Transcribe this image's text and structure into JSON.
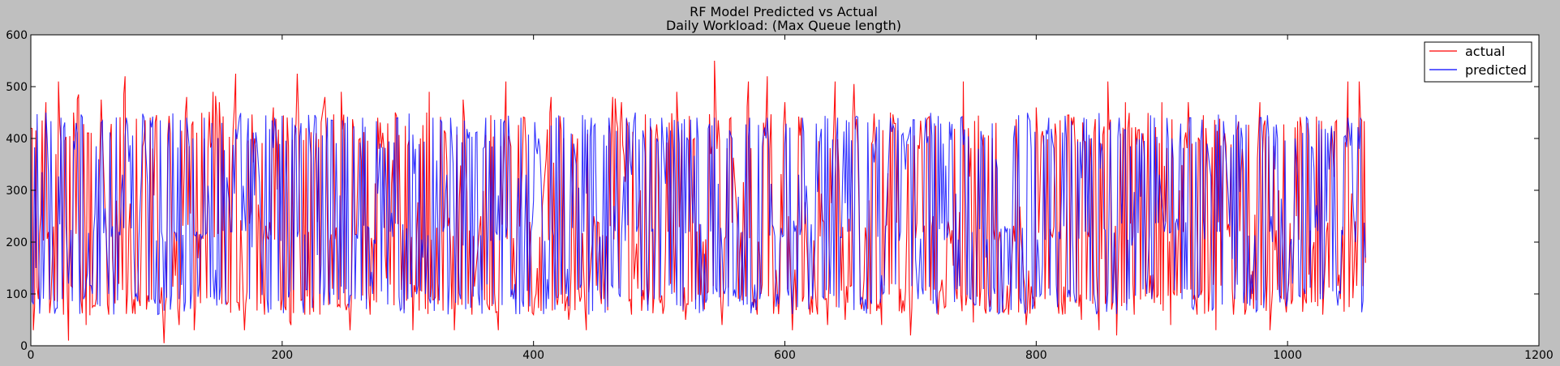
{
  "chart_data": {
    "type": "line",
    "title": "RF Model Predicted vs Actual",
    "subtitle": "Daily Workload: (Max Queue length)",
    "xlabel": "",
    "ylabel": "",
    "xlim": [
      0,
      1200
    ],
    "ylim": [
      0,
      600
    ],
    "x_ticks": [
      0,
      200,
      400,
      600,
      800,
      1000,
      1200
    ],
    "y_ticks": [
      0,
      100,
      200,
      300,
      400,
      500,
      600
    ],
    "grid": false,
    "legend_position": "top-right",
    "n_points": 1063,
    "series": [
      {
        "name": "actual",
        "color": "#ff0000",
        "keypoints": [
          [
            0,
            420
          ],
          [
            2,
            30
          ],
          [
            6,
            90
          ],
          [
            8,
            255
          ],
          [
            12,
            470
          ],
          [
            16,
            90
          ],
          [
            22,
            510
          ],
          [
            26,
            60
          ],
          [
            30,
            10
          ],
          [
            34,
            450
          ],
          [
            38,
            485
          ],
          [
            44,
            40
          ],
          [
            52,
            90
          ],
          [
            56,
            475
          ],
          [
            62,
            60
          ],
          [
            68,
            280
          ],
          [
            75,
            520
          ],
          [
            82,
            90
          ],
          [
            88,
            220
          ],
          [
            95,
            440
          ],
          [
            102,
            90
          ],
          [
            106,
            5
          ],
          [
            112,
            230
          ],
          [
            118,
            40
          ],
          [
            124,
            480
          ],
          [
            130,
            30
          ],
          [
            138,
            400
          ],
          [
            145,
            490
          ],
          [
            150,
            470
          ],
          [
            156,
            80
          ],
          [
            163,
            525
          ],
          [
            170,
            30
          ],
          [
            178,
            400
          ],
          [
            186,
            60
          ],
          [
            193,
            460
          ],
          [
            200,
            90
          ],
          [
            207,
            40
          ],
          [
            212,
            525
          ],
          [
            218,
            60
          ],
          [
            226,
            350
          ],
          [
            234,
            480
          ],
          [
            240,
            110
          ],
          [
            247,
            490
          ],
          [
            254,
            30
          ],
          [
            262,
            400
          ],
          [
            270,
            60
          ],
          [
            276,
            440
          ],
          [
            283,
            130
          ],
          [
            290,
            450
          ],
          [
            297,
            70
          ],
          [
            304,
            30
          ],
          [
            310,
            400
          ],
          [
            317,
            490
          ],
          [
            324,
            80
          ],
          [
            330,
            410
          ],
          [
            337,
            30
          ],
          [
            344,
            475
          ],
          [
            351,
            60
          ],
          [
            358,
            250
          ],
          [
            366,
            445
          ],
          [
            372,
            30
          ],
          [
            378,
            510
          ],
          [
            386,
            90
          ],
          [
            393,
            440
          ],
          [
            400,
            60
          ],
          [
            408,
            300
          ],
          [
            414,
            480
          ],
          [
            420,
            100
          ],
          [
            428,
            50
          ],
          [
            435,
            400
          ],
          [
            442,
            30
          ],
          [
            448,
            250
          ],
          [
            456,
            90
          ],
          [
            463,
            480
          ],
          [
            470,
            470
          ],
          [
            478,
            60
          ],
          [
            485,
            300
          ],
          [
            492,
            110
          ],
          [
            500,
            90
          ],
          [
            507,
            220
          ],
          [
            514,
            490
          ],
          [
            521,
            50
          ],
          [
            528,
            400
          ],
          [
            536,
            70
          ],
          [
            544,
            550
          ],
          [
            550,
            40
          ],
          [
            557,
            440
          ],
          [
            564,
            170
          ],
          [
            571,
            510
          ],
          [
            578,
            60
          ],
          [
            586,
            520
          ],
          [
            592,
            100
          ],
          [
            600,
            470
          ],
          [
            606,
            30
          ],
          [
            613,
            440
          ],
          [
            620,
            60
          ],
          [
            627,
            395
          ],
          [
            634,
            40
          ],
          [
            640,
            510
          ],
          [
            648,
            50
          ],
          [
            655,
            505
          ],
          [
            662,
            90
          ],
          [
            670,
            395
          ],
          [
            677,
            40
          ],
          [
            684,
            450
          ],
          [
            692,
            110
          ],
          [
            700,
            20
          ],
          [
            707,
            380
          ],
          [
            714,
            440
          ],
          [
            722,
            60
          ],
          [
            730,
            240
          ],
          [
            737,
            90
          ],
          [
            742,
            510
          ],
          [
            746,
            420
          ],
          [
            750,
            45
          ],
          [
            757,
            380
          ],
          [
            764,
            90
          ],
          [
            771,
            220
          ],
          [
            778,
            60
          ],
          [
            785,
            360
          ],
          [
            792,
            40
          ],
          [
            800,
            460
          ],
          [
            807,
            90
          ],
          [
            814,
            230
          ],
          [
            821,
            60
          ],
          [
            828,
            440
          ],
          [
            836,
            50
          ],
          [
            843,
            400
          ],
          [
            850,
            30
          ],
          [
            857,
            510
          ],
          [
            864,
            20
          ],
          [
            871,
            470
          ],
          [
            878,
            60
          ],
          [
            885,
            410
          ],
          [
            892,
            90
          ],
          [
            900,
            470
          ],
          [
            907,
            40
          ],
          [
            914,
            300
          ],
          [
            921,
            470
          ],
          [
            928,
            60
          ],
          [
            935,
            420
          ],
          [
            943,
            30
          ],
          [
            950,
            410
          ],
          [
            957,
            60
          ],
          [
            964,
            380
          ],
          [
            971,
            90
          ],
          [
            978,
            470
          ],
          [
            986,
            30
          ],
          [
            993,
            300
          ],
          [
            1000,
            100
          ],
          [
            1007,
            250
          ],
          [
            1014,
            90
          ],
          [
            1021,
            200
          ],
          [
            1028,
            60
          ],
          [
            1035,
            420
          ],
          [
            1042,
            90
          ],
          [
            1048,
            510
          ],
          [
            1053,
            150
          ],
          [
            1057,
            510
          ],
          [
            1062,
            160
          ]
        ]
      },
      {
        "name": "predicted",
        "color": "#0000ff",
        "keypoints": [
          [
            0,
            420
          ],
          [
            2,
            80
          ],
          [
            6,
            220
          ],
          [
            12,
            450
          ],
          [
            18,
            100
          ],
          [
            24,
            440
          ],
          [
            30,
            120
          ],
          [
            36,
            430
          ],
          [
            42,
            90
          ],
          [
            50,
            220
          ],
          [
            56,
            430
          ],
          [
            62,
            100
          ],
          [
            70,
            220
          ],
          [
            76,
            440
          ],
          [
            84,
            100
          ],
          [
            90,
            440
          ],
          [
            98,
            90
          ],
          [
            104,
            220
          ],
          [
            110,
            430
          ],
          [
            118,
            90
          ],
          [
            124,
            440
          ],
          [
            132,
            220
          ],
          [
            138,
            440
          ],
          [
            146,
            90
          ],
          [
            152,
            430
          ],
          [
            160,
            220
          ],
          [
            166,
            440
          ],
          [
            174,
            90
          ],
          [
            180,
            390
          ],
          [
            188,
            90
          ],
          [
            194,
            440
          ],
          [
            202,
            220
          ],
          [
            208,
            440
          ],
          [
            216,
            90
          ],
          [
            222,
            400
          ],
          [
            230,
            100
          ],
          [
            236,
            440
          ],
          [
            244,
            220
          ],
          [
            250,
            430
          ],
          [
            258,
            90
          ],
          [
            264,
            440
          ],
          [
            272,
            100
          ],
          [
            278,
            390
          ],
          [
            286,
            220
          ],
          [
            292,
            440
          ],
          [
            300,
            90
          ],
          [
            306,
            380
          ],
          [
            314,
            100
          ],
          [
            320,
            440
          ],
          [
            328,
            220
          ],
          [
            334,
            440
          ],
          [
            342,
            90
          ],
          [
            348,
            400
          ],
          [
            356,
            100
          ],
          [
            362,
            440
          ],
          [
            370,
            220
          ],
          [
            376,
            430
          ],
          [
            384,
            90
          ],
          [
            390,
            440
          ],
          [
            398,
            220
          ],
          [
            404,
            400
          ],
          [
            412,
            90
          ],
          [
            418,
            440
          ],
          [
            426,
            100
          ],
          [
            432,
            390
          ],
          [
            440,
            220
          ],
          [
            446,
            440
          ],
          [
            454,
            90
          ],
          [
            460,
            440
          ],
          [
            468,
            100
          ],
          [
            474,
            440
          ],
          [
            482,
            220
          ],
          [
            488,
            400
          ],
          [
            496,
            90
          ],
          [
            502,
            440
          ],
          [
            510,
            100
          ],
          [
            516,
            390
          ],
          [
            524,
            220
          ],
          [
            530,
            440
          ],
          [
            538,
            90
          ],
          [
            544,
            440
          ],
          [
            552,
            100
          ],
          [
            558,
            400
          ],
          [
            566,
            220
          ],
          [
            572,
            440
          ],
          [
            580,
            90
          ],
          [
            586,
            440
          ],
          [
            594,
            100
          ],
          [
            600,
            390
          ],
          [
            608,
            220
          ],
          [
            614,
            440
          ],
          [
            622,
            90
          ],
          [
            628,
            400
          ],
          [
            636,
            100
          ],
          [
            642,
            440
          ],
          [
            650,
            220
          ],
          [
            656,
            440
          ],
          [
            664,
            90
          ],
          [
            670,
            390
          ],
          [
            678,
            100
          ],
          [
            684,
            440
          ],
          [
            692,
            220
          ],
          [
            698,
            400
          ],
          [
            706,
            90
          ],
          [
            712,
            440
          ],
          [
            720,
            100
          ],
          [
            726,
            390
          ],
          [
            734,
            220
          ],
          [
            740,
            440
          ],
          [
            748,
            90
          ],
          [
            754,
            380
          ],
          [
            762,
            100
          ],
          [
            768,
            360
          ],
          [
            776,
            220
          ],
          [
            782,
            400
          ],
          [
            790,
            90
          ],
          [
            796,
            380
          ],
          [
            804,
            100
          ],
          [
            810,
            440
          ],
          [
            818,
            220
          ],
          [
            824,
            400
          ],
          [
            832,
            90
          ],
          [
            838,
            440
          ],
          [
            846,
            100
          ],
          [
            852,
            390
          ],
          [
            860,
            220
          ],
          [
            866,
            440
          ],
          [
            874,
            90
          ],
          [
            880,
            400
          ],
          [
            888,
            100
          ],
          [
            894,
            440
          ],
          [
            902,
            220
          ],
          [
            908,
            400
          ],
          [
            916,
            90
          ],
          [
            922,
            440
          ],
          [
            930,
            100
          ],
          [
            936,
            390
          ],
          [
            944,
            220
          ],
          [
            950,
            400
          ],
          [
            958,
            90
          ],
          [
            964,
            400
          ],
          [
            972,
            100
          ],
          [
            978,
            440
          ],
          [
            986,
            220
          ],
          [
            992,
            400
          ],
          [
            1000,
            90
          ],
          [
            1006,
            400
          ],
          [
            1014,
            100
          ],
          [
            1020,
            380
          ],
          [
            1028,
            90
          ],
          [
            1034,
            390
          ],
          [
            1042,
            100
          ],
          [
            1048,
            440
          ],
          [
            1054,
            200
          ],
          [
            1058,
            440
          ],
          [
            1062,
            170
          ]
        ]
      }
    ]
  }
}
